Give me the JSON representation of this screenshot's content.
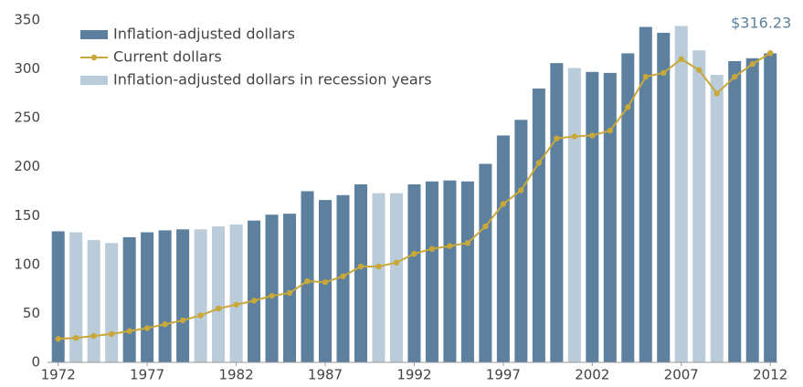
{
  "chart_data": {
    "type": "bar",
    "x": [
      1972,
      1973,
      1974,
      1975,
      1976,
      1977,
      1978,
      1979,
      1980,
      1981,
      1982,
      1983,
      1984,
      1985,
      1986,
      1987,
      1988,
      1989,
      1990,
      1991,
      1992,
      1993,
      1994,
      1995,
      1996,
      1997,
      1998,
      1999,
      2000,
      2001,
      2002,
      2003,
      2004,
      2005,
      2006,
      2007,
      2008,
      2009,
      2010,
      2011,
      2012
    ],
    "xlim": [
      1971.4,
      2012.4
    ],
    "xticks": [
      1972,
      1977,
      1982,
      1987,
      1992,
      1997,
      2002,
      2007,
      2012
    ],
    "ylim": [
      0,
      350
    ],
    "yticks": [
      0,
      50,
      100,
      150,
      200,
      250,
      300,
      350
    ],
    "grid": false,
    "legend": "upper left",
    "series": [
      {
        "name": "Inflation-adjusted dollars",
        "type": "bar",
        "color": "#5c809d",
        "values": [
          134,
          null,
          null,
          null,
          128,
          133,
          135,
          136,
          null,
          null,
          null,
          145,
          151,
          152,
          175,
          166,
          171,
          182,
          null,
          null,
          182,
          185,
          186,
          185,
          203,
          232,
          248,
          280,
          306,
          null,
          297,
          296,
          316,
          343,
          337,
          null,
          null,
          null,
          308,
          311,
          316
        ]
      },
      {
        "name": "Current dollars",
        "type": "line",
        "color": "#c9a83a",
        "values": [
          24,
          25,
          27,
          29,
          32,
          35,
          39,
          43,
          48,
          55,
          59,
          63,
          68,
          71,
          83,
          82,
          88,
          98,
          98,
          102,
          111,
          116,
          119,
          122,
          139,
          162,
          176,
          204,
          229,
          231,
          232,
          237,
          261,
          292,
          296,
          310,
          299,
          275,
          292,
          305,
          316.23
        ],
        "value_labels": [
          null,
          null,
          null,
          null,
          null,
          null,
          null,
          null,
          null,
          null,
          null,
          null,
          null,
          null,
          null,
          null,
          null,
          null,
          null,
          null,
          null,
          null,
          null,
          null,
          null,
          null,
          null,
          null,
          null,
          null,
          null,
          null,
          null,
          null,
          null,
          null,
          null,
          null,
          null,
          null,
          "$316.23"
        ]
      },
      {
        "name": "Inflation-adjusted dollars in recession years",
        "type": "bar",
        "color": "#bacbd9",
        "values": [
          null,
          133,
          125,
          122,
          null,
          null,
          null,
          null,
          136,
          139,
          141,
          null,
          null,
          null,
          null,
          null,
          null,
          null,
          173,
          173,
          null,
          null,
          null,
          null,
          null,
          null,
          null,
          null,
          null,
          301,
          null,
          null,
          null,
          null,
          null,
          344,
          319,
          294,
          null,
          null,
          null
        ]
      }
    ]
  }
}
